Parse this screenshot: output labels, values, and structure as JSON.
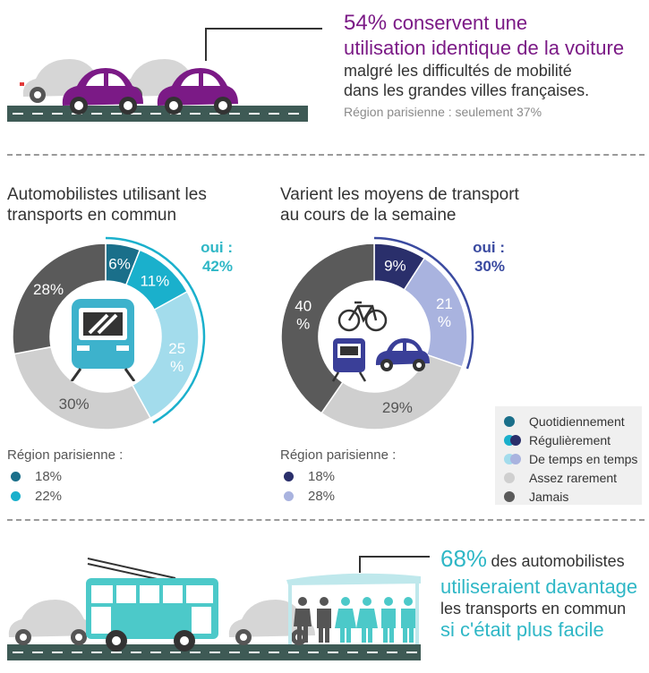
{
  "top": {
    "pct": "54%",
    "line1": "conservent une",
    "line2": "utilisation identique de la voiture",
    "line3": "malgré les difficultés de mobilité",
    "line4": "dans les grandes villes françaises.",
    "line5": "Région parisienne : seulement 37%"
  },
  "bottom": {
    "pct": "68%",
    "line1": "des automobilistes",
    "line2": "utiliseraient davantage",
    "line3": "les transports en commun",
    "line4": "si c'était plus facile"
  },
  "colors": {
    "quotidiennement": "#1a6f8a",
    "regulierement_left": "#1ab0cc",
    "regulierement_right": "#2a2f6b",
    "temps_left": "#a3dcec",
    "temps_right": "#a9b3df",
    "rarement": "#cfcfcf",
    "jamais": "#5a5a5a",
    "purple": "#7b1a86",
    "teal": "#2fb7c6",
    "bus": "#4cc9c9",
    "road": "#3e5a55"
  },
  "chart_data": [
    {
      "type": "pie",
      "title": "Automobilistes utilisant les transports en commun",
      "labels": [
        "Quotidiennement",
        "Régulièrement",
        "De temps en temps",
        "Assez rarement",
        "Jamais"
      ],
      "values": [
        6,
        11,
        25,
        30,
        28
      ],
      "value_labels": [
        "6%",
        "11%",
        "25 %",
        "30%",
        "28%"
      ],
      "annotation": {
        "label": "oui :",
        "value": "42%"
      },
      "region_title": "Région parisienne :",
      "region_values": [
        "18%",
        "22%"
      ]
    },
    {
      "type": "pie",
      "title": "Varient les moyens de transport au cours de la semaine",
      "labels": [
        "Régulièrement",
        "De temps en temps",
        "Assez rarement",
        "Jamais"
      ],
      "values": [
        9,
        21,
        29,
        40
      ],
      "value_labels": [
        "9%",
        "21 %",
        "29%",
        "40 %"
      ],
      "annotation": {
        "label": "oui :",
        "value": "30%"
      },
      "region_title": "Région parisienne :",
      "region_values": [
        "18%",
        "28%"
      ]
    }
  ],
  "legend": [
    {
      "label": "Quotidiennement"
    },
    {
      "label": "Régulièrement"
    },
    {
      "label": "De temps en temps"
    },
    {
      "label": "Assez rarement"
    },
    {
      "label": "Jamais"
    }
  ]
}
